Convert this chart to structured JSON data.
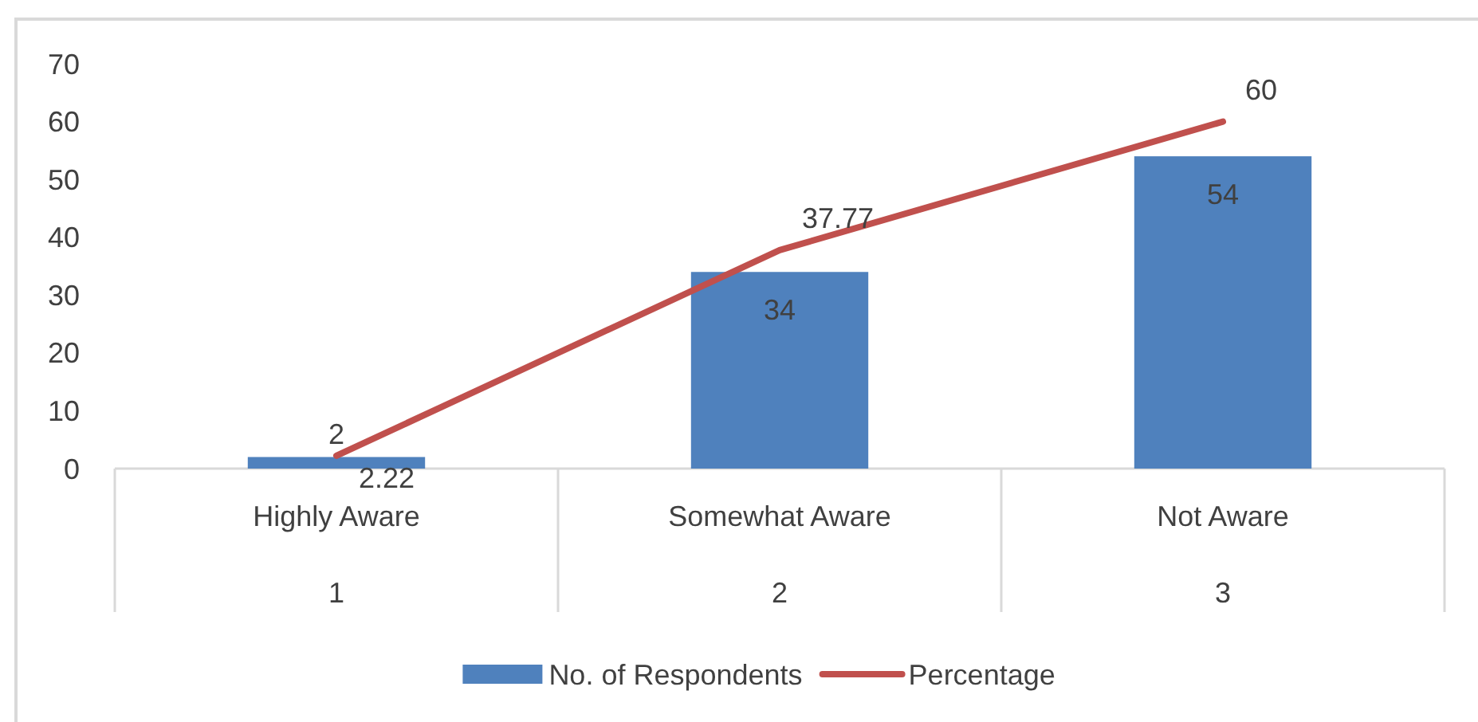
{
  "chart_data": {
    "type": "bar",
    "categories": [
      "Highly Aware\n1",
      "Somewhat Aware\n2",
      "Not Aware\n3"
    ],
    "series": [
      {
        "name": "No. of Respondents",
        "color": "#4f81bd",
        "values": [
          2,
          34,
          54
        ]
      },
      {
        "name": "Percentage",
        "type": "line",
        "color": "#c0504d",
        "values": [
          2.22,
          37.77,
          60
        ]
      }
    ],
    "ylim": [
      0,
      70
    ],
    "yticks": [
      0,
      10,
      20,
      30,
      40,
      50,
      60,
      70
    ],
    "data_labels": true,
    "legend": "bottom",
    "grid": false,
    "marker": "none"
  }
}
